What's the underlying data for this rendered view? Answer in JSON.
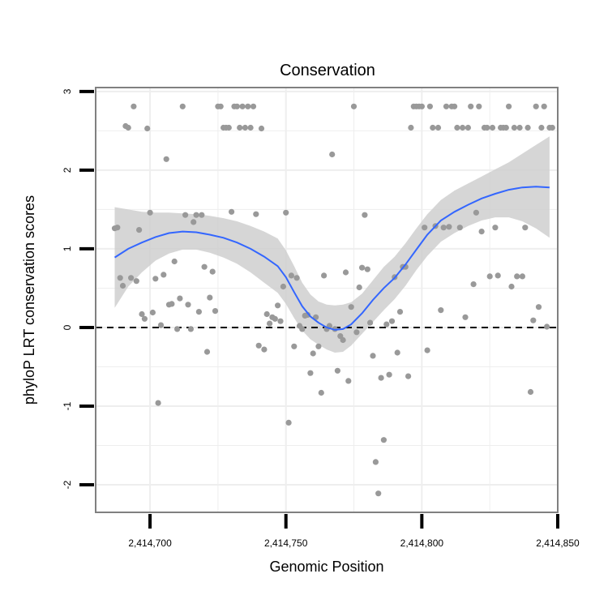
{
  "chart_data": {
    "type": "scatter",
    "title": "Conservation",
    "xlabel": "Genomic Position",
    "ylabel": "phyloP LRT conservation scores",
    "xlim": [
      2414680,
      2414850
    ],
    "ylim": [
      -2.35,
      3.05
    ],
    "x_ticks": [
      2414700,
      2414750,
      2414800,
      2414850
    ],
    "x_tick_labels": [
      "2,414,700",
      "2,414,750",
      "2,414,800",
      "2,414,850"
    ],
    "y_ticks": [
      -2,
      -1,
      0,
      1,
      2,
      3
    ],
    "y_tick_labels": [
      "-2",
      "-1",
      "0",
      "1",
      "2",
      "3"
    ],
    "grid": true,
    "reference_line": {
      "y": 0,
      "style": "dashed"
    },
    "colors": {
      "points": "#999999",
      "smooth_line": "#3366ff",
      "confidence_band": "#cccccc",
      "grid": "#eeeeee",
      "panel_border": "#808080"
    },
    "points": [
      {
        "x": 2414687,
        "y": 1.26
      },
      {
        "x": 2414688,
        "y": 1.27
      },
      {
        "x": 2414689,
        "y": 0.63
      },
      {
        "x": 2414690,
        "y": 0.53
      },
      {
        "x": 2414691,
        "y": 2.56
      },
      {
        "x": 2414692,
        "y": 2.54
      },
      {
        "x": 2414693,
        "y": 0.63
      },
      {
        "x": 2414694,
        "y": 2.81
      },
      {
        "x": 2414695,
        "y": 0.59
      },
      {
        "x": 2414696,
        "y": 1.24
      },
      {
        "x": 2414697,
        "y": 0.17
      },
      {
        "x": 2414698,
        "y": 0.11
      },
      {
        "x": 2414699,
        "y": 2.53
      },
      {
        "x": 2414700,
        "y": 1.46
      },
      {
        "x": 2414701,
        "y": 0.19
      },
      {
        "x": 2414702,
        "y": 0.62
      },
      {
        "x": 2414703,
        "y": -0.96
      },
      {
        "x": 2414704,
        "y": 0.03
      },
      {
        "x": 2414705,
        "y": 0.67
      },
      {
        "x": 2414706,
        "y": 2.14
      },
      {
        "x": 2414707,
        "y": 0.29
      },
      {
        "x": 2414708,
        "y": 0.3
      },
      {
        "x": 2414709,
        "y": 0.84
      },
      {
        "x": 2414710,
        "y": -0.02
      },
      {
        "x": 2414711,
        "y": 0.37
      },
      {
        "x": 2414712,
        "y": 2.81
      },
      {
        "x": 2414713,
        "y": 1.43
      },
      {
        "x": 2414714,
        "y": 0.29
      },
      {
        "x": 2414715,
        "y": -0.02
      },
      {
        "x": 2414716,
        "y": 1.34
      },
      {
        "x": 2414717,
        "y": 1.43
      },
      {
        "x": 2414718,
        "y": 0.2
      },
      {
        "x": 2414719,
        "y": 1.43
      },
      {
        "x": 2414720,
        "y": 0.77
      },
      {
        "x": 2414721,
        "y": -0.31
      },
      {
        "x": 2414722,
        "y": 0.38
      },
      {
        "x": 2414723,
        "y": 0.71
      },
      {
        "x": 2414724,
        "y": 0.21
      },
      {
        "x": 2414725,
        "y": 2.81
      },
      {
        "x": 2414726,
        "y": 2.81
      },
      {
        "x": 2414727,
        "y": 2.54
      },
      {
        "x": 2414728,
        "y": 2.54
      },
      {
        "x": 2414729,
        "y": 2.54
      },
      {
        "x": 2414730,
        "y": 1.47
      },
      {
        "x": 2414731,
        "y": 2.81
      },
      {
        "x": 2414732,
        "y": 2.81
      },
      {
        "x": 2414733,
        "y": 2.54
      },
      {
        "x": 2414734,
        "y": 2.81
      },
      {
        "x": 2414735,
        "y": 2.54
      },
      {
        "x": 2414736,
        "y": 2.81
      },
      {
        "x": 2414737,
        "y": 2.54
      },
      {
        "x": 2414738,
        "y": 2.81
      },
      {
        "x": 2414739,
        "y": 1.44
      },
      {
        "x": 2414740,
        "y": -0.23
      },
      {
        "x": 2414741,
        "y": 2.53
      },
      {
        "x": 2414742,
        "y": -0.28
      },
      {
        "x": 2414743,
        "y": 0.17
      },
      {
        "x": 2414744,
        "y": 0.05
      },
      {
        "x": 2414745,
        "y": 0.13
      },
      {
        "x": 2414746,
        "y": 0.11
      },
      {
        "x": 2414747,
        "y": 0.28
      },
      {
        "x": 2414748,
        "y": 0.08
      },
      {
        "x": 2414749,
        "y": 0.52
      },
      {
        "x": 2414750,
        "y": 1.46
      },
      {
        "x": 2414751,
        "y": -1.21
      },
      {
        "x": 2414752,
        "y": 0.66
      },
      {
        "x": 2414753,
        "y": -0.24
      },
      {
        "x": 2414754,
        "y": 0.63
      },
      {
        "x": 2414755,
        "y": 0.02
      },
      {
        "x": 2414756,
        "y": -0.02
      },
      {
        "x": 2414757,
        "y": 0.15
      },
      {
        "x": 2414758,
        "y": 0.16
      },
      {
        "x": 2414759,
        "y": -0.58
      },
      {
        "x": 2414760,
        "y": -0.33
      },
      {
        "x": 2414761,
        "y": 0.13
      },
      {
        "x": 2414762,
        "y": -0.24
      },
      {
        "x": 2414763,
        "y": -0.83
      },
      {
        "x": 2414764,
        "y": 0.66
      },
      {
        "x": 2414765,
        "y": -0.02
      },
      {
        "x": 2414766,
        "y": 0.02
      },
      {
        "x": 2414767,
        "y": 2.2
      },
      {
        "x": 2414768,
        "y": -0.02
      },
      {
        "x": 2414769,
        "y": -0.55
      },
      {
        "x": 2414770,
        "y": -0.11
      },
      {
        "x": 2414771,
        "y": -0.16
      },
      {
        "x": 2414772,
        "y": 0.7
      },
      {
        "x": 2414773,
        "y": -0.68
      },
      {
        "x": 2414774,
        "y": 0.26
      },
      {
        "x": 2414775,
        "y": 2.81
      },
      {
        "x": 2414776,
        "y": -0.06
      },
      {
        "x": 2414777,
        "y": 0.51
      },
      {
        "x": 2414778,
        "y": 0.76
      },
      {
        "x": 2414779,
        "y": 1.43
      },
      {
        "x": 2414780,
        "y": 0.74
      },
      {
        "x": 2414781,
        "y": 0.06
      },
      {
        "x": 2414782,
        "y": -0.36
      },
      {
        "x": 2414783,
        "y": -1.71
      },
      {
        "x": 2414784,
        "y": -2.11
      },
      {
        "x": 2414785,
        "y": -0.64
      },
      {
        "x": 2414786,
        "y": -1.43
      },
      {
        "x": 2414787,
        "y": 0.04
      },
      {
        "x": 2414788,
        "y": -0.6
      },
      {
        "x": 2414789,
        "y": 0.08
      },
      {
        "x": 2414790,
        "y": 0.64
      },
      {
        "x": 2414791,
        "y": -0.32
      },
      {
        "x": 2414792,
        "y": 0.2
      },
      {
        "x": 2414793,
        "y": 0.77
      },
      {
        "x": 2414794,
        "y": 0.77
      },
      {
        "x": 2414795,
        "y": -0.62
      },
      {
        "x": 2414796,
        "y": 2.54
      },
      {
        "x": 2414797,
        "y": 2.81
      },
      {
        "x": 2414798,
        "y": 2.81
      },
      {
        "x": 2414799,
        "y": 2.81
      },
      {
        "x": 2414800,
        "y": 2.81
      },
      {
        "x": 2414801,
        "y": 1.27
      },
      {
        "x": 2414802,
        "y": -0.29
      },
      {
        "x": 2414803,
        "y": 2.81
      },
      {
        "x": 2414804,
        "y": 2.54
      },
      {
        "x": 2414805,
        "y": 1.29
      },
      {
        "x": 2414806,
        "y": 2.54
      },
      {
        "x": 2414807,
        "y": 0.22
      },
      {
        "x": 2414808,
        "y": 1.27
      },
      {
        "x": 2414809,
        "y": 2.81
      },
      {
        "x": 2414810,
        "y": 1.28
      },
      {
        "x": 2414811,
        "y": 2.81
      },
      {
        "x": 2414812,
        "y": 2.81
      },
      {
        "x": 2414813,
        "y": 2.54
      },
      {
        "x": 2414814,
        "y": 1.27
      },
      {
        "x": 2414815,
        "y": 2.54
      },
      {
        "x": 2414816,
        "y": 0.13
      },
      {
        "x": 2414817,
        "y": 2.54
      },
      {
        "x": 2414818,
        "y": 2.81
      },
      {
        "x": 2414819,
        "y": 0.55
      },
      {
        "x": 2414820,
        "y": 1.46
      },
      {
        "x": 2414821,
        "y": 2.81
      },
      {
        "x": 2414822,
        "y": 1.22
      },
      {
        "x": 2414823,
        "y": 2.54
      },
      {
        "x": 2414824,
        "y": 2.54
      },
      {
        "x": 2414825,
        "y": 0.65
      },
      {
        "x": 2414826,
        "y": 2.54
      },
      {
        "x": 2414827,
        "y": 1.27
      },
      {
        "x": 2414828,
        "y": 0.66
      },
      {
        "x": 2414829,
        "y": 2.54
      },
      {
        "x": 2414830,
        "y": 2.54
      },
      {
        "x": 2414831,
        "y": 2.54
      },
      {
        "x": 2414832,
        "y": 2.81
      },
      {
        "x": 2414833,
        "y": 0.52
      },
      {
        "x": 2414834,
        "y": 2.54
      },
      {
        "x": 2414835,
        "y": 0.65
      },
      {
        "x": 2414836,
        "y": 2.54
      },
      {
        "x": 2414837,
        "y": 0.65
      },
      {
        "x": 2414838,
        "y": 1.27
      },
      {
        "x": 2414839,
        "y": 2.54
      },
      {
        "x": 2414840,
        "y": -0.82
      },
      {
        "x": 2414841,
        "y": 0.09
      },
      {
        "x": 2414842,
        "y": 2.81
      },
      {
        "x": 2414843,
        "y": 0.26
      },
      {
        "x": 2414844,
        "y": 2.54
      },
      {
        "x": 2414845,
        "y": 2.81
      },
      {
        "x": 2414846,
        "y": 0.01
      },
      {
        "x": 2414847,
        "y": 2.54
      },
      {
        "x": 2414848,
        "y": 2.54
      }
    ],
    "smooth": [
      {
        "x": 2414687,
        "y": 0.89,
        "lo": 0.25,
        "hi": 1.53
      },
      {
        "x": 2414692,
        "y": 1.0,
        "lo": 0.52,
        "hi": 1.5
      },
      {
        "x": 2414697,
        "y": 1.08,
        "lo": 0.7,
        "hi": 1.47
      },
      {
        "x": 2414702,
        "y": 1.15,
        "lo": 0.85,
        "hi": 1.46
      },
      {
        "x": 2414707,
        "y": 1.2,
        "lo": 0.94,
        "hi": 1.46
      },
      {
        "x": 2414712,
        "y": 1.22,
        "lo": 0.99,
        "hi": 1.45
      },
      {
        "x": 2414717,
        "y": 1.21,
        "lo": 0.99,
        "hi": 1.44
      },
      {
        "x": 2414722,
        "y": 1.18,
        "lo": 0.95,
        "hi": 1.42
      },
      {
        "x": 2414727,
        "y": 1.14,
        "lo": 0.89,
        "hi": 1.39
      },
      {
        "x": 2414732,
        "y": 1.08,
        "lo": 0.81,
        "hi": 1.35
      },
      {
        "x": 2414737,
        "y": 1.0,
        "lo": 0.7,
        "hi": 1.29
      },
      {
        "x": 2414742,
        "y": 0.9,
        "lo": 0.57,
        "hi": 1.22
      },
      {
        "x": 2414747,
        "y": 0.78,
        "lo": 0.44,
        "hi": 1.13
      },
      {
        "x": 2414750,
        "y": 0.64,
        "lo": 0.3,
        "hi": 0.98
      },
      {
        "x": 2414753,
        "y": 0.45,
        "lo": 0.12,
        "hi": 0.78
      },
      {
        "x": 2414756,
        "y": 0.27,
        "lo": -0.04,
        "hi": 0.57
      },
      {
        "x": 2414759,
        "y": 0.14,
        "lo": -0.15,
        "hi": 0.42
      },
      {
        "x": 2414762,
        "y": 0.06,
        "lo": -0.22,
        "hi": 0.33
      },
      {
        "x": 2414765,
        "y": 0.0,
        "lo": -0.28,
        "hi": 0.29
      },
      {
        "x": 2414768,
        "y": -0.03,
        "lo": -0.32,
        "hi": 0.28
      },
      {
        "x": 2414771,
        "y": -0.02,
        "lo": -0.31,
        "hi": 0.29
      },
      {
        "x": 2414774,
        "y": 0.04,
        "lo": -0.23,
        "hi": 0.32
      },
      {
        "x": 2414778,
        "y": 0.18,
        "lo": -0.08,
        "hi": 0.43
      },
      {
        "x": 2414782,
        "y": 0.35,
        "lo": 0.07,
        "hi": 0.6
      },
      {
        "x": 2414786,
        "y": 0.5,
        "lo": 0.22,
        "hi": 0.77
      },
      {
        "x": 2414790,
        "y": 0.63,
        "lo": 0.36,
        "hi": 0.9
      },
      {
        "x": 2414794,
        "y": 0.8,
        "lo": 0.53,
        "hi": 1.07
      },
      {
        "x": 2414798,
        "y": 0.99,
        "lo": 0.73,
        "hi": 1.26
      },
      {
        "x": 2414802,
        "y": 1.18,
        "lo": 0.91,
        "hi": 1.44
      },
      {
        "x": 2414807,
        "y": 1.36,
        "lo": 1.09,
        "hi": 1.62
      },
      {
        "x": 2414812,
        "y": 1.47,
        "lo": 1.2,
        "hi": 1.74
      },
      {
        "x": 2414817,
        "y": 1.56,
        "lo": 1.29,
        "hi": 1.83
      },
      {
        "x": 2414822,
        "y": 1.64,
        "lo": 1.36,
        "hi": 1.92
      },
      {
        "x": 2414827,
        "y": 1.7,
        "lo": 1.4,
        "hi": 2.01
      },
      {
        "x": 2414832,
        "y": 1.75,
        "lo": 1.4,
        "hi": 2.1
      },
      {
        "x": 2414837,
        "y": 1.78,
        "lo": 1.35,
        "hi": 2.21
      },
      {
        "x": 2414842,
        "y": 1.79,
        "lo": 1.26,
        "hi": 2.32
      },
      {
        "x": 2414847,
        "y": 1.78,
        "lo": 1.14,
        "hi": 2.43
      }
    ]
  }
}
